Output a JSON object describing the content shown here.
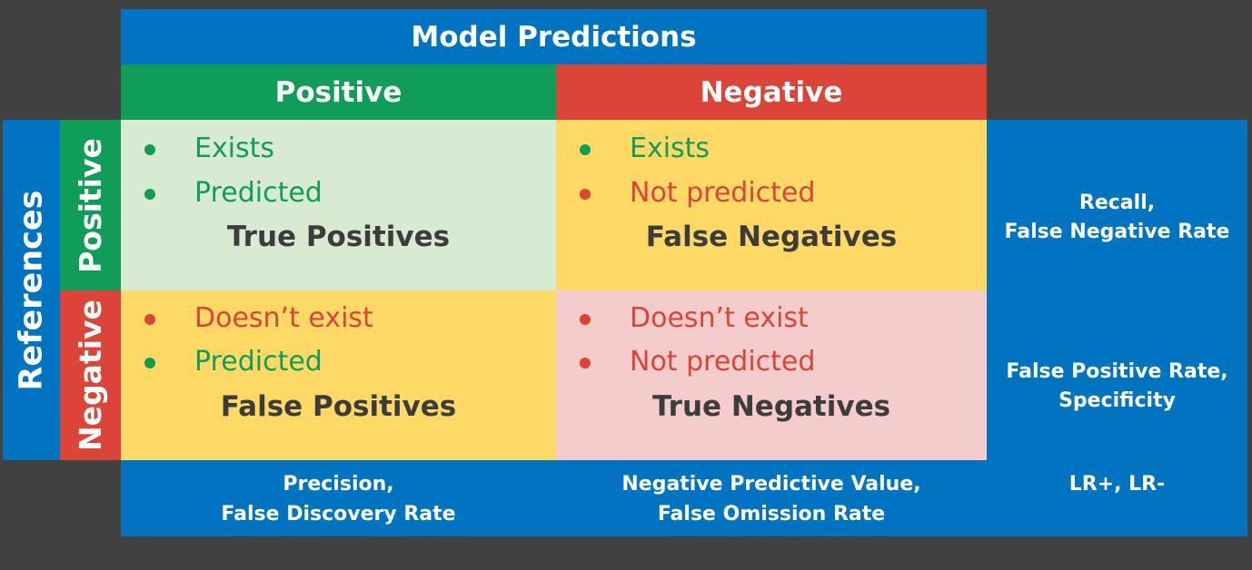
{
  "header": {
    "title": "Model Predictions",
    "positive": "Positive",
    "negative": "Negative"
  },
  "references": {
    "title": "References",
    "positive": "Positive",
    "negative": "Negative"
  },
  "cells": {
    "tp": {
      "line1": "Exists",
      "line2": "Predicted",
      "label": "True Positives"
    },
    "fn": {
      "line1": "Exists",
      "line2": "Not predicted",
      "label": "False Negatives"
    },
    "fp": {
      "line1": "Doesn’t exist",
      "line2": "Predicted",
      "label": "False Positives"
    },
    "tn": {
      "line1": "Doesn’t exist",
      "line2": "Not predicted",
      "label": "True Negatives"
    }
  },
  "right": {
    "top_line1": "Recall,",
    "top_line2": "False Negative Rate",
    "bottom_line1": "False Positive Rate,",
    "bottom_line2": "Specificity"
  },
  "bottom": {
    "left_line1": "Precision,",
    "left_line2": "False Discovery Rate",
    "mid_line1": "Negative Predictive Value,",
    "mid_line2": "False Omission Rate",
    "right_line1": "LR+, LR-"
  },
  "colors": {
    "blue": "#0074c0",
    "green": "#0f9d58",
    "red": "#db4437",
    "yellow": "#ffd966",
    "light_green": "#d9ead3",
    "light_red": "#f4cccc"
  }
}
